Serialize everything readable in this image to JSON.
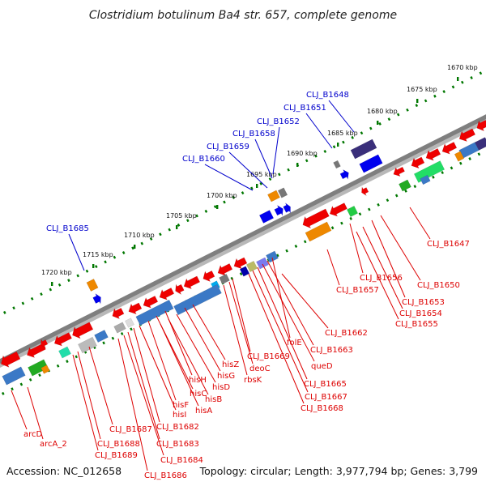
{
  "title": "Clostridium botulinum Ba4 str. 657, complete genome",
  "footer": {
    "accession": "Accession: NC_012658",
    "summary": "Topology: circular; Length: 3,977,794 bp; Genes: 3,799"
  },
  "colors": {
    "forward_label": "#0000cc",
    "reverse_label": "#dd0000",
    "backbone": "#808080",
    "ticks": "#007700"
  },
  "kbp_ticks": [
    "1670 kbp",
    "1675 kbp",
    "1680 kbp",
    "1685 kbp",
    "1690 kbp",
    "1695 kbp",
    "1700 kbp",
    "1705 kbp",
    "1710 kbp",
    "1715 kbp",
    "1720 kbp"
  ],
  "forward_labels": [
    "CLJ_B1648",
    "CLJ_B1651",
    "CLJ_B1652",
    "CLJ_B1658",
    "CLJ_B1659",
    "CLJ_B1660",
    "CLJ_B1685"
  ],
  "reverse_labels": [
    "CLJ_B1647",
    "CLJ_B1650",
    "CLJ_B1656",
    "CLJ_B1653",
    "CLJ_B1657",
    "CLJ_B1654",
    "CLJ_B1655",
    "CLJ_B1662",
    "folE",
    "CLJ_B1663",
    "queD",
    "CLJ_B1669",
    "deoC",
    "rbsK",
    "CLJ_B1665",
    "CLJ_B1667",
    "CLJ_B1668",
    "hisZ",
    "hisG",
    "hisH",
    "hisD",
    "hisC",
    "hisB",
    "hisF",
    "hisA",
    "hisI",
    "CLJ_B1682",
    "CLJ_B1683",
    "CLJ_B1684",
    "CLJ_B1686",
    "CLJ_B1687",
    "CLJ_B1688",
    "CLJ_B1689",
    "arcD",
    "arcA_2"
  ]
}
